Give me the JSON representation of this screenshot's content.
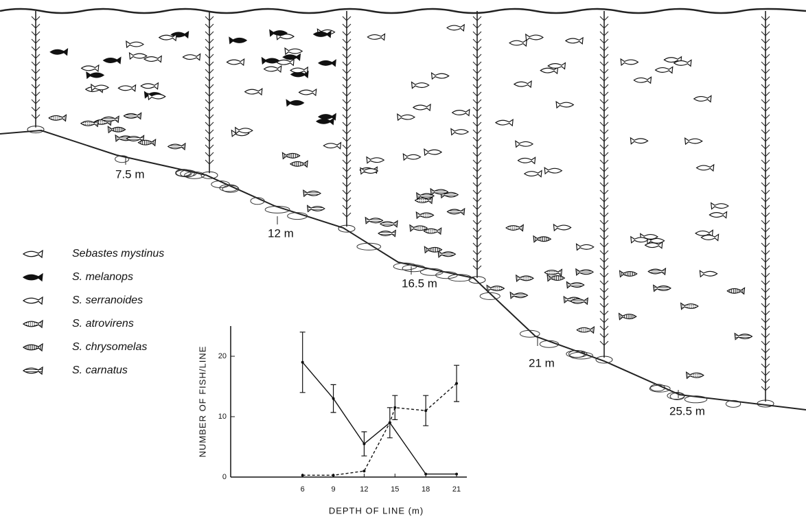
{
  "depth_labels": [
    "7.5 m",
    "12 m",
    "16.5 m",
    "21 m",
    "25.5 m"
  ],
  "legend": [
    "Sebastes mystinus",
    "S. melanops",
    "S. serranoides",
    "S. atrovirens",
    "S. chrysomelas",
    "S. carnatus"
  ],
  "chart_data": {
    "type": "line",
    "x_label": "DEPTH OF LINE (m)",
    "y_label": "NUMBER OF FISH/LINE",
    "xlim": [
      -1,
      22
    ],
    "xticks": [
      6,
      9,
      12,
      15,
      18,
      21
    ],
    "ylim": [
      0,
      25
    ],
    "yticks": [
      0,
      10,
      20
    ],
    "series": [
      {
        "color": "#111111",
        "style": "solid",
        "x": [
          6,
          9,
          12,
          14.5,
          18,
          21
        ],
        "values": [
          19,
          13,
          5.5,
          9,
          0.5,
          0.5
        ],
        "errors": [
          5,
          2.3,
          2,
          2.5,
          null,
          null
        ]
      },
      {
        "color": "#111111",
        "style": "dashed",
        "x": [
          6,
          9,
          12,
          14.5,
          15,
          18,
          21
        ],
        "values": [
          0.3,
          0.3,
          1,
          9,
          11.5,
          11,
          15.5
        ],
        "errors": [
          null,
          null,
          null,
          null,
          2,
          2.5,
          3
        ]
      }
    ]
  }
}
